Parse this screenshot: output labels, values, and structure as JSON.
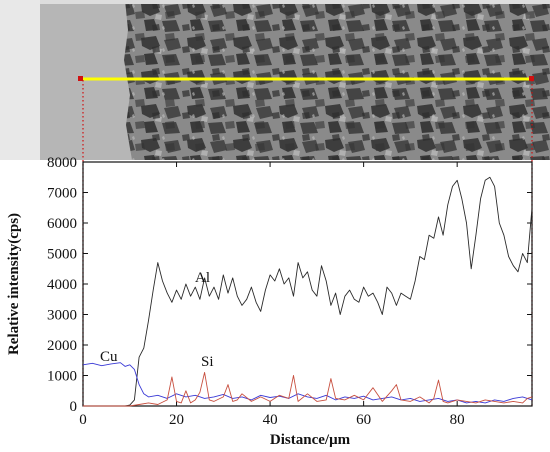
{
  "chart_data": {
    "type": "line",
    "title": "",
    "xlabel": "Distance/μm",
    "ylabel": "Relative intensity(cps)",
    "xlim": [
      0,
      96
    ],
    "ylim": [
      0,
      8000
    ],
    "xticks": [
      "0",
      "20",
      "40",
      "60",
      "80"
    ],
    "yticks": [
      "0",
      "1000",
      "2000",
      "3000",
      "4000",
      "5000",
      "6000",
      "7000",
      "8000"
    ],
    "grid": false,
    "legend": "none",
    "series": [
      {
        "name": "Al",
        "color": "#2a2a2a",
        "x": [
          0,
          9,
          10,
          11,
          12,
          13,
          14,
          15,
          16,
          17,
          18,
          19,
          20,
          21,
          22,
          23,
          24,
          25,
          26,
          27,
          28,
          29,
          30,
          31,
          32,
          33,
          34,
          35,
          36,
          37,
          38,
          39,
          40,
          41,
          42,
          43,
          44,
          45,
          46,
          47,
          48,
          49,
          50,
          51,
          52,
          53,
          54,
          55,
          56,
          57,
          58,
          59,
          60,
          61,
          62,
          63,
          64,
          65,
          66,
          67,
          68,
          69,
          70,
          71,
          72,
          73,
          74,
          75,
          76,
          77,
          78,
          79,
          80,
          81,
          82,
          83,
          84,
          85,
          86,
          87,
          88,
          89,
          90,
          91,
          92,
          93,
          94,
          95,
          96
        ],
        "y": [
          0,
          0,
          30,
          200,
          1600,
          1900,
          2800,
          3800,
          4700,
          4100,
          3700,
          3400,
          3800,
          3500,
          4000,
          3600,
          3900,
          3500,
          4200,
          3600,
          3900,
          3500,
          4300,
          3700,
          4200,
          3600,
          3300,
          3500,
          3900,
          3400,
          3100,
          3800,
          4300,
          4100,
          4500,
          4000,
          4200,
          3600,
          4700,
          4200,
          4400,
          3800,
          3600,
          4600,
          4100,
          3300,
          3700,
          3000,
          3600,
          3800,
          3500,
          3400,
          3900,
          3600,
          3700,
          3400,
          3000,
          3900,
          3700,
          3300,
          3700,
          3600,
          3500,
          4100,
          4900,
          4800,
          5600,
          5500,
          6200,
          5600,
          6600,
          7200,
          7400,
          6800,
          6000,
          4500,
          5600,
          6800,
          7400,
          7500,
          7200,
          6000,
          5600,
          4900,
          4600,
          4400,
          5000,
          4700,
          6500
        ]
      },
      {
        "name": "Cu",
        "color": "#3a3ad6",
        "x": [
          0,
          2,
          4,
          6,
          8,
          9,
          10,
          11,
          12,
          13,
          14,
          16,
          18,
          20,
          22,
          24,
          26,
          28,
          30,
          32,
          34,
          36,
          38,
          40,
          42,
          44,
          46,
          48,
          50,
          52,
          54,
          56,
          58,
          60,
          62,
          64,
          66,
          68,
          70,
          72,
          74,
          76,
          78,
          80,
          82,
          84,
          86,
          88,
          90,
          92,
          94,
          96
        ],
        "y": [
          1350,
          1400,
          1320,
          1380,
          1420,
          1300,
          1350,
          1200,
          700,
          400,
          300,
          350,
          250,
          400,
          300,
          350,
          250,
          300,
          380,
          250,
          300,
          200,
          350,
          280,
          320,
          250,
          400,
          300,
          250,
          350,
          200,
          300,
          250,
          320,
          200,
          250,
          300,
          200,
          250,
          150,
          200,
          250,
          150,
          200,
          100,
          150,
          100,
          200,
          150,
          250,
          300,
          200
        ]
      },
      {
        "name": "Si",
        "color": "#c85040",
        "x": [
          0,
          10,
          12,
          14,
          16,
          18,
          19,
          20,
          21,
          22,
          23,
          24,
          25,
          26,
          27,
          28,
          30,
          31,
          32,
          33,
          34,
          36,
          38,
          40,
          42,
          44,
          45,
          46,
          48,
          50,
          52,
          53,
          54,
          56,
          58,
          60,
          62,
          64,
          66,
          67,
          68,
          70,
          72,
          74,
          75,
          76,
          77,
          78,
          80,
          82,
          84,
          86,
          88,
          90,
          92,
          94,
          95,
          96
        ],
        "y": [
          0,
          0,
          50,
          100,
          50,
          200,
          950,
          150,
          100,
          500,
          100,
          200,
          450,
          1100,
          200,
          150,
          300,
          700,
          150,
          200,
          400,
          150,
          300,
          150,
          350,
          250,
          1000,
          150,
          400,
          150,
          200,
          900,
          250,
          200,
          350,
          200,
          600,
          150,
          500,
          700,
          200,
          150,
          300,
          100,
          250,
          850,
          150,
          100,
          200,
          150,
          100,
          200,
          150,
          100,
          150,
          100,
          250,
          300
        ]
      }
    ]
  },
  "figure": {
    "scan_line_color": "#ffff00",
    "guide_color": "#d01010"
  }
}
